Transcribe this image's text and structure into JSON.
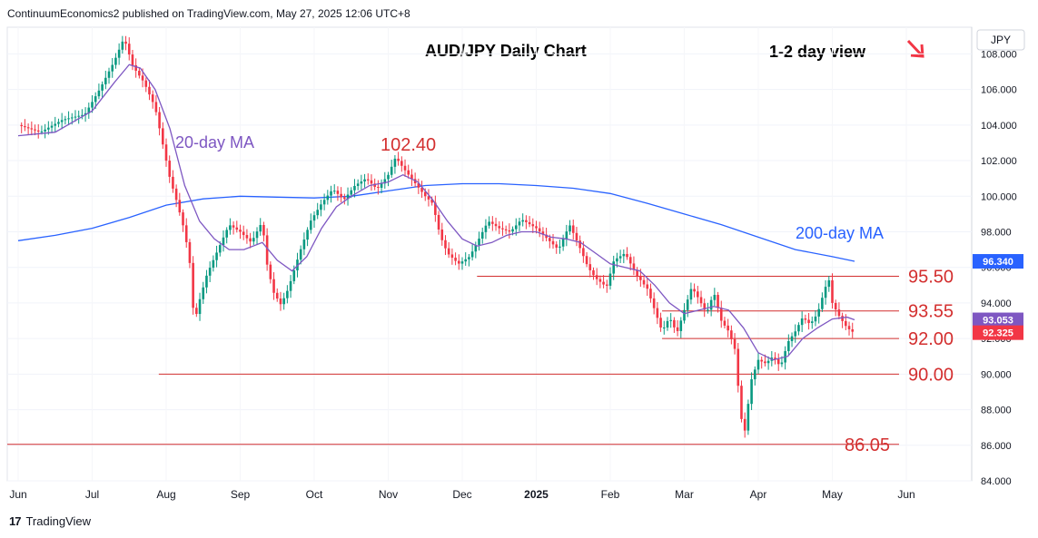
{
  "header": {
    "published": "ContinuumEconomics2 published on TradingView.com, May 27, 2025 12:06 UTC+8"
  },
  "footer": {
    "brand": "TradingView"
  },
  "currency_label": "JPY",
  "colors": {
    "up": "#089981",
    "down": "#f23645",
    "ma20": "#7e57c2",
    "ma200": "#2962ff",
    "level": "#d32f2f"
  },
  "chart_data": {
    "type": "candlestick",
    "title": "AUD/JPY Daily Chart",
    "subtitle": "1-2 day view",
    "direction_icon": "arrow-down-right-icon",
    "x_labels": [
      "Jun",
      "Jul",
      "Aug",
      "Sep",
      "Oct",
      "Nov",
      "Dec",
      "2025",
      "Feb",
      "Mar",
      "Apr",
      "May",
      "Jun"
    ],
    "y_ticks": [
      "84.000",
      "86.000",
      "88.000",
      "90.000",
      "92.000",
      "94.000",
      "96.000",
      "98.000",
      "100.000",
      "102.000",
      "104.000",
      "106.000",
      "108.000"
    ],
    "ylim": [
      84,
      109.5
    ],
    "price_tags": [
      {
        "value": "96.340",
        "y": 96.34,
        "color": "#2962ff"
      },
      {
        "value": "93.053",
        "y": 93.05,
        "color": "#7e57c2"
      },
      {
        "value": "92.325",
        "y": 92.33,
        "color": "#f23645"
      }
    ],
    "levels": [
      {
        "label": "95.50",
        "y": 95.5,
        "from_month": 6.2
      },
      {
        "label": "93.55",
        "y": 93.55,
        "from_month": 8.7
      },
      {
        "label": "92.00",
        "y": 92.0,
        "from_month": 8.7
      },
      {
        "label": "90.00",
        "y": 90.0,
        "from_month": 1.9
      },
      {
        "label": "86.05",
        "y": 86.05,
        "from_month": 0
      }
    ],
    "annotations": [
      {
        "text": "102.40",
        "color": "#d32f2f"
      },
      {
        "text": "20-day MA",
        "color": "#7e57c2"
      },
      {
        "text": "200-day MA",
        "color": "#2962ff"
      }
    ],
    "price_path": [
      [
        0.0,
        104.0
      ],
      [
        0.3,
        103.6
      ],
      [
        0.6,
        104.3
      ],
      [
        0.9,
        104.6
      ],
      [
        1.1,
        106.0
      ],
      [
        1.3,
        107.6
      ],
      [
        1.43,
        108.9
      ],
      [
        1.55,
        107.3
      ],
      [
        1.7,
        106.4
      ],
      [
        1.85,
        105.0
      ],
      [
        1.95,
        103.0
      ],
      [
        2.05,
        101.0
      ],
      [
        2.15,
        99.6
      ],
      [
        2.25,
        98.0
      ],
      [
        2.32,
        96.2
      ],
      [
        2.38,
        92.8
      ],
      [
        2.44,
        94.0
      ],
      [
        2.55,
        95.6
      ],
      [
        2.7,
        97.0
      ],
      [
        2.85,
        98.4
      ],
      [
        3.0,
        98.0
      ],
      [
        3.15,
        97.4
      ],
      [
        3.3,
        98.6
      ],
      [
        3.35,
        96.4
      ],
      [
        3.45,
        94.6
      ],
      [
        3.55,
        93.9
      ],
      [
        3.65,
        94.8
      ],
      [
        3.8,
        96.8
      ],
      [
        3.95,
        98.6
      ],
      [
        4.1,
        99.6
      ],
      [
        4.25,
        100.4
      ],
      [
        4.4,
        99.8
      ],
      [
        4.55,
        100.6
      ],
      [
        4.7,
        101.0
      ],
      [
        4.85,
        100.4
      ],
      [
        5.0,
        101.2
      ],
      [
        5.1,
        102.2
      ],
      [
        5.2,
        101.6
      ],
      [
        5.35,
        100.8
      ],
      [
        5.5,
        100.0
      ],
      [
        5.6,
        99.6
      ],
      [
        5.7,
        97.8
      ],
      [
        5.8,
        96.8
      ],
      [
        5.95,
        96.2
      ],
      [
        6.1,
        96.6
      ],
      [
        6.25,
        97.8
      ],
      [
        6.35,
        98.6
      ],
      [
        6.5,
        98.2
      ],
      [
        6.65,
        98.0
      ],
      [
        6.8,
        98.7
      ],
      [
        7.0,
        98.2
      ],
      [
        7.15,
        97.6
      ],
      [
        7.3,
        97.0
      ],
      [
        7.45,
        98.4
      ],
      [
        7.6,
        97.0
      ],
      [
        7.7,
        96.0
      ],
      [
        7.8,
        95.4
      ],
      [
        7.95,
        94.9
      ],
      [
        8.05,
        96.4
      ],
      [
        8.2,
        96.8
      ],
      [
        8.35,
        95.6
      ],
      [
        8.5,
        94.8
      ],
      [
        8.6,
        93.6
      ],
      [
        8.7,
        92.4
      ],
      [
        8.8,
        93.2
      ],
      [
        8.9,
        92.3
      ],
      [
        9.0,
        93.6
      ],
      [
        9.1,
        94.9
      ],
      [
        9.2,
        94.2
      ],
      [
        9.3,
        93.4
      ],
      [
        9.4,
        94.6
      ],
      [
        9.5,
        93.0
      ],
      [
        9.6,
        92.4
      ],
      [
        9.7,
        91.2
      ],
      [
        9.75,
        87.8
      ],
      [
        9.82,
        86.8
      ],
      [
        9.9,
        89.6
      ],
      [
        10.0,
        90.8
      ],
      [
        10.1,
        90.6
      ],
      [
        10.2,
        91.0
      ],
      [
        10.3,
        90.4
      ],
      [
        10.4,
        91.8
      ],
      [
        10.5,
        92.4
      ],
      [
        10.6,
        93.2
      ],
      [
        10.7,
        92.8
      ],
      [
        10.8,
        93.4
      ],
      [
        10.9,
        94.8
      ],
      [
        10.95,
        95.4
      ],
      [
        11.0,
        94.0
      ],
      [
        11.1,
        93.2
      ],
      [
        11.2,
        92.6
      ],
      [
        11.3,
        92.3
      ]
    ],
    "ma20_path": [
      [
        0.0,
        103.4
      ],
      [
        0.5,
        103.6
      ],
      [
        1.0,
        104.8
      ],
      [
        1.3,
        106.4
      ],
      [
        1.5,
        107.4
      ],
      [
        1.65,
        107.2
      ],
      [
        1.85,
        106.0
      ],
      [
        2.05,
        103.8
      ],
      [
        2.25,
        100.6
      ],
      [
        2.45,
        98.6
      ],
      [
        2.65,
        97.6
      ],
      [
        2.85,
        97.0
      ],
      [
        3.05,
        97.0
      ],
      [
        3.3,
        97.4
      ],
      [
        3.5,
        96.4
      ],
      [
        3.7,
        95.8
      ],
      [
        3.9,
        96.6
      ],
      [
        4.1,
        98.2
      ],
      [
        4.3,
        99.4
      ],
      [
        4.5,
        100.0
      ],
      [
        4.75,
        100.6
      ],
      [
        5.0,
        100.8
      ],
      [
        5.2,
        101.2
      ],
      [
        5.4,
        100.8
      ],
      [
        5.6,
        99.8
      ],
      [
        5.8,
        98.6
      ],
      [
        6.0,
        97.6
      ],
      [
        6.2,
        97.2
      ],
      [
        6.4,
        97.4
      ],
      [
        6.6,
        97.8
      ],
      [
        6.8,
        98.0
      ],
      [
        7.0,
        98.0
      ],
      [
        7.2,
        97.7
      ],
      [
        7.4,
        97.6
      ],
      [
        7.6,
        97.4
      ],
      [
        7.8,
        96.8
      ],
      [
        8.0,
        96.2
      ],
      [
        8.2,
        96.0
      ],
      [
        8.4,
        95.8
      ],
      [
        8.6,
        95.0
      ],
      [
        8.8,
        94.0
      ],
      [
        9.0,
        93.4
      ],
      [
        9.2,
        93.6
      ],
      [
        9.4,
        93.8
      ],
      [
        9.6,
        93.6
      ],
      [
        9.8,
        92.6
      ],
      [
        10.0,
        91.2
      ],
      [
        10.2,
        90.8
      ],
      [
        10.4,
        91.0
      ],
      [
        10.6,
        92.0
      ],
      [
        10.8,
        92.6
      ],
      [
        11.0,
        93.1
      ],
      [
        11.2,
        93.2
      ],
      [
        11.3,
        93.05
      ]
    ],
    "ma200_path": [
      [
        0.0,
        97.5
      ],
      [
        0.5,
        97.8
      ],
      [
        1.0,
        98.2
      ],
      [
        1.5,
        98.8
      ],
      [
        2.0,
        99.5
      ],
      [
        2.5,
        99.85
      ],
      [
        3.0,
        100.0
      ],
      [
        3.5,
        99.95
      ],
      [
        4.0,
        99.9
      ],
      [
        4.5,
        100.0
      ],
      [
        5.0,
        100.3
      ],
      [
        5.5,
        100.6
      ],
      [
        6.0,
        100.7
      ],
      [
        6.5,
        100.7
      ],
      [
        7.0,
        100.6
      ],
      [
        7.5,
        100.45
      ],
      [
        8.0,
        100.15
      ],
      [
        8.5,
        99.6
      ],
      [
        9.0,
        99.0
      ],
      [
        9.5,
        98.4
      ],
      [
        10.0,
        97.7
      ],
      [
        10.5,
        97.0
      ],
      [
        11.0,
        96.6
      ],
      [
        11.3,
        96.34
      ]
    ]
  }
}
